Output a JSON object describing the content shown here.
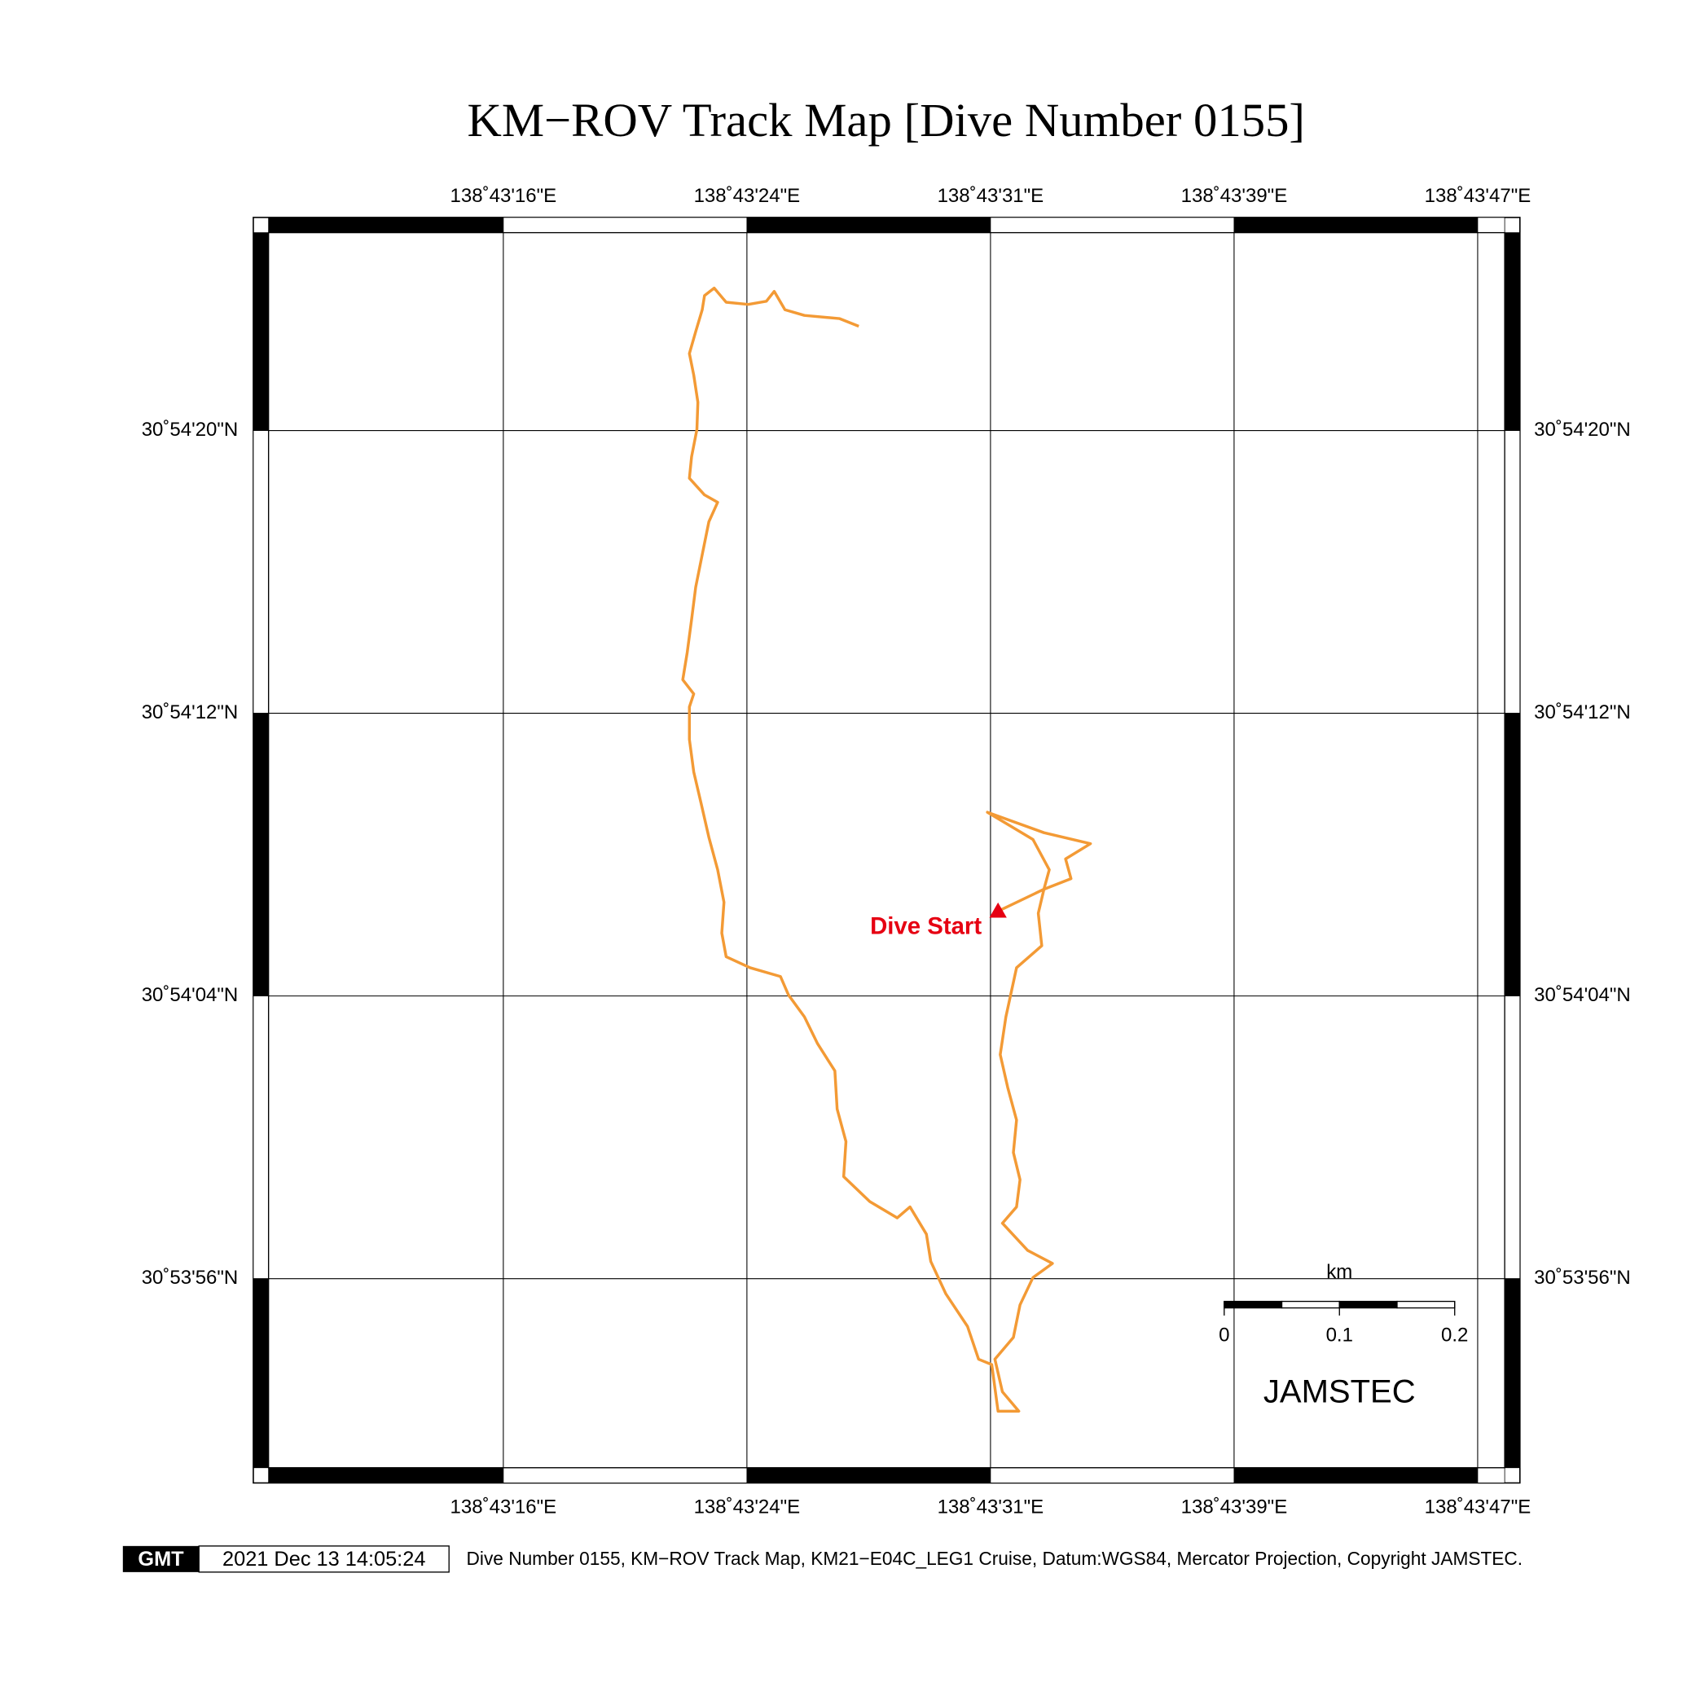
{
  "title": "KM−ROV Track Map [Dive Number 0155]",
  "map_data": {
    "type": "track",
    "xlim": [
      8.53,
      47.86
    ],
    "ylim": [
      50.65,
      85.6
    ],
    "xticks": [
      {
        "value": 16,
        "label": "138˚43'16\"E"
      },
      {
        "value": 23.75,
        "label": "138˚43'24\"E"
      },
      {
        "value": 31.5,
        "label": "138˚43'31\"E"
      },
      {
        "value": 39.25,
        "label": "138˚43'39\"E"
      },
      {
        "value": 47,
        "label": "138˚43'47\"E"
      }
    ],
    "yticks": [
      {
        "value": 56,
        "label": "30˚53'56\"N"
      },
      {
        "value": 64,
        "label": "30˚54'04\"N"
      },
      {
        "value": 72,
        "label": "30˚54'12\"N"
      },
      {
        "value": 80,
        "label": "30˚54'20\"N"
      }
    ],
    "grid": true,
    "track_color": "#f39a35",
    "track_lon": [
      31.74,
      33.2,
      34.06,
      33.89,
      34.68,
      33.2,
      31.4,
      32.85,
      33.37,
      33.2,
      33.02,
      33.13,
      32.33,
      31.99,
      31.81,
      32.05,
      32.33,
      32.23,
      32.44,
      32.33,
      31.88,
      32.68,
      33.47,
      32.85,
      32.44,
      32.23,
      31.64,
      31.88,
      32.4,
      31.74,
      31.54,
      31.12,
      30.77,
      30.08,
      29.6,
      29.46,
      28.94,
      28.53,
      27.66,
      26.83,
      26.9,
      26.62,
      26.55,
      26.0,
      25.58,
      25.07,
      24.82,
      23.85,
      23.09,
      22.95,
      23.02,
      22.82,
      22.54,
      22.3,
      22.06,
      21.92,
      21.92,
      22.06,
      21.71,
      21.85,
      21.99,
      22.12,
      22.33,
      22.54,
      22.82,
      22.4,
      21.92,
      21.99,
      22.16,
      22.19,
      22.06,
      21.92,
      22.12,
      22.33,
      22.4,
      22.71,
      23.09,
      23.79,
      24.37,
      24.62,
      24.96,
      25.58,
      26.69,
      27.31
    ],
    "track_lat": [
      66.4,
      67.02,
      67.32,
      67.88,
      68.31,
      68.62,
      69.2,
      68.43,
      67.57,
      67.02,
      66.34,
      65.42,
      64.8,
      63.41,
      62.34,
      61.41,
      60.49,
      59.57,
      58.8,
      58.03,
      57.57,
      56.8,
      56.43,
      56.03,
      55.26,
      54.34,
      53.72,
      52.8,
      52.25,
      52.25,
      53.57,
      53.72,
      54.65,
      55.57,
      56.49,
      57.26,
      58.03,
      57.72,
      58.18,
      58.89,
      59.88,
      60.8,
      61.88,
      62.65,
      63.41,
      64.03,
      64.55,
      64.8,
      65.11,
      65.78,
      66.65,
      67.57,
      68.49,
      69.42,
      70.34,
      71.26,
      72.18,
      72.55,
      72.95,
      73.72,
      74.65,
      75.57,
      76.49,
      77.42,
      77.97,
      78.18,
      78.65,
      79.26,
      80.03,
      80.8,
      81.57,
      82.18,
      82.8,
      83.42,
      83.82,
      84.03,
      83.63,
      83.57,
      83.66,
      83.94,
      83.42,
      83.26,
      83.17,
      82.95
    ],
    "start": {
      "label": "Dive Start",
      "lon": 31.74,
      "lat": 66.4,
      "color": "#e60012"
    },
    "scale_bar": {
      "unit": "km",
      "ticks": [
        0,
        0.1,
        0.2
      ]
    },
    "logo_text": "JAMSTEC"
  },
  "footer": {
    "logo": "GMT",
    "timestamp": "2021 Dec 13 14:05:24",
    "caption": "Dive Number 0155, KM−ROV Track Map, KM21−E04C_LEG1 Cruise, Datum:WGS84, Mercator Projection, Copyright JAMSTEC."
  }
}
